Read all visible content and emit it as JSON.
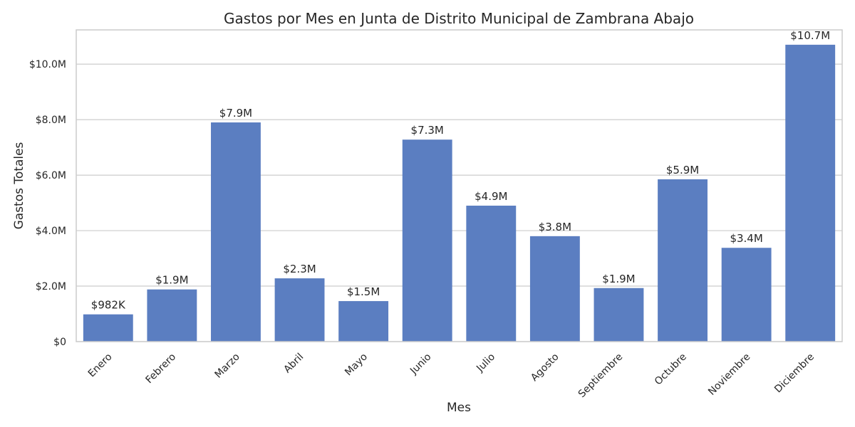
{
  "chart_data": {
    "type": "bar",
    "title": "Gastos por Mes en Junta de Distrito Municipal de Zambrana Abajo",
    "xlabel": "Mes",
    "ylabel": "Gastos Totales",
    "categories": [
      "Enero",
      "Febrero",
      "Marzo",
      "Abril",
      "Mayo",
      "Junio",
      "Julio",
      "Agosto",
      "Septiembre",
      "Octubre",
      "Noviembre",
      "Diciembre"
    ],
    "values": [
      982000,
      1880000,
      7900000,
      2280000,
      1460000,
      7280000,
      4900000,
      3800000,
      1930000,
      5850000,
      3380000,
      10700000
    ],
    "value_labels": [
      "$982K",
      "$1.9M",
      "$7.9M",
      "$2.3M",
      "$1.5M",
      "$7.3M",
      "$4.9M",
      "$3.8M",
      "$1.9M",
      "$5.9M",
      "$3.4M",
      "$10.7M"
    ],
    "yticks": [
      0,
      2000000,
      4000000,
      6000000,
      8000000,
      10000000
    ],
    "ytick_labels": [
      "$0",
      "$2.0M",
      "$4.0M",
      "$6.0M",
      "$8.0M",
      "$10.0M"
    ],
    "ylim": [
      0,
      11235000
    ],
    "grid": "horizontal",
    "bar_color": "#5b7ec1",
    "grid_color": "#cccccc",
    "text_color": "#262626"
  }
}
